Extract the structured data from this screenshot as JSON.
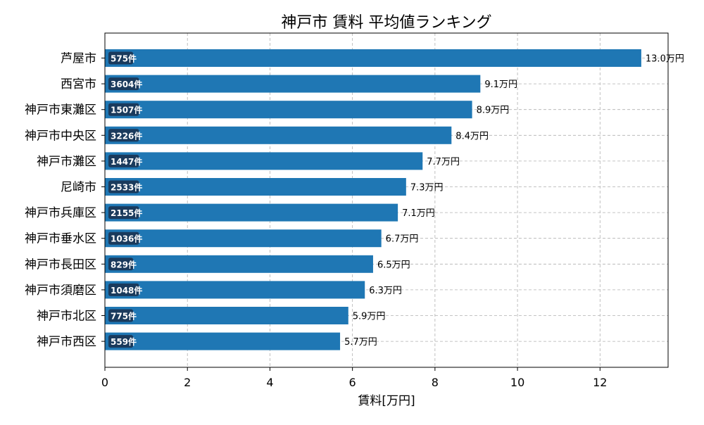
{
  "chart_data": {
    "type": "bar",
    "orientation": "horizontal",
    "title": "神戸市 賃料 平均値ランキング",
    "xlabel": "賃料[万円]",
    "ylabel": "",
    "xlim": [
      0,
      13.65
    ],
    "xticks": [
      0,
      2,
      4,
      6,
      8,
      10,
      12
    ],
    "grid": true,
    "bar_color": "#1f77b4",
    "count_badge_color": "#1a3a5c",
    "value_suffix": "万円",
    "count_suffix": "件",
    "categories": [
      "芦屋市",
      "西宮市",
      "神戸市東灘区",
      "神戸市中央区",
      "神戸市灘区",
      "尼崎市",
      "神戸市兵庫区",
      "神戸市垂水区",
      "神戸市長田区",
      "神戸市須磨区",
      "神戸市北区",
      "神戸市西区"
    ],
    "values": [
      13.0,
      9.1,
      8.9,
      8.4,
      7.7,
      7.3,
      7.1,
      6.7,
      6.5,
      6.3,
      5.9,
      5.7
    ],
    "value_labels": [
      "13.0万円",
      "9.1万円",
      "8.9万円",
      "8.4万円",
      "7.7万円",
      "7.3万円",
      "7.1万円",
      "6.7万円",
      "6.5万円",
      "6.3万円",
      "5.9万円",
      "5.7万円"
    ],
    "counts": [
      575,
      3604,
      1507,
      3226,
      1447,
      2533,
      2155,
      1036,
      829,
      1048,
      775,
      559
    ],
    "count_labels": [
      "575件",
      "3604件",
      "1507件",
      "3226件",
      "1447件",
      "2533件",
      "2155件",
      "1036件",
      "829件",
      "1048件",
      "775件",
      "559件"
    ]
  }
}
